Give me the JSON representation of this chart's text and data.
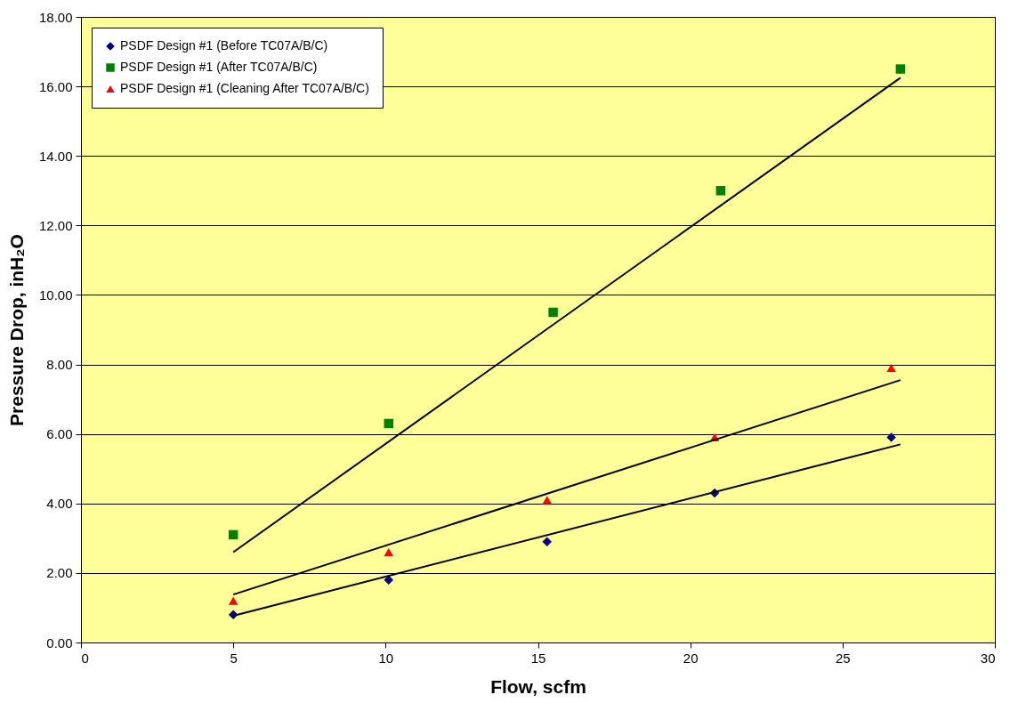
{
  "chart_data": {
    "type": "scatter",
    "xlabel": "Flow, scfm",
    "ylabel": "Pressure Drop, inH₂O",
    "xlim": [
      0,
      30
    ],
    "xticks": [
      0,
      5,
      10,
      15,
      20,
      25,
      30
    ],
    "ylim": [
      0,
      18
    ],
    "yticks": [
      {
        "value": 0,
        "label": "0.00"
      },
      {
        "value": 2,
        "label": "2.00"
      },
      {
        "value": 4,
        "label": "4.00"
      },
      {
        "value": 6,
        "label": "6.00"
      },
      {
        "value": 8,
        "label": "8.00"
      },
      {
        "value": 10,
        "label": "10.00"
      },
      {
        "value": 12,
        "label": "12.00"
      },
      {
        "value": 14,
        "label": "14.00"
      },
      {
        "value": 16,
        "label": "16.00"
      },
      {
        "value": 18,
        "label": "18.00"
      }
    ],
    "grid": "y",
    "legend": "top left",
    "series": [
      {
        "name": "PSDF Design #1 (Before TC07A/B/C)",
        "marker": "diamond",
        "color": "#000080",
        "x": [
          5.0,
          10.1,
          15.3,
          20.8,
          26.6
        ],
        "values": [
          0.8,
          1.8,
          2.9,
          4.3,
          5.9
        ]
      },
      {
        "name": "PSDF Design #1 (After TC07A/B/C)",
        "marker": "square",
        "color": "#008000",
        "x": [
          5.0,
          10.1,
          15.5,
          21.0,
          26.9
        ],
        "values": [
          3.1,
          6.3,
          9.5,
          13.0,
          16.5
        ]
      },
      {
        "name": "PSDF Design #1 (Cleaning After TC07A/B/C)",
        "marker": "triangle",
        "color": "#ff0000",
        "x": [
          5.0,
          10.1,
          15.3,
          20.8,
          26.6
        ],
        "values": [
          1.2,
          2.6,
          4.1,
          5.9,
          7.9
        ]
      },
      {
        "type": "line",
        "color": "#000000",
        "x": [
          5.0,
          26.9
        ],
        "values": [
          0.77,
          5.7
        ]
      },
      {
        "type": "line",
        "color": "#000000",
        "x": [
          5.0,
          26.9
        ],
        "values": [
          2.6,
          16.25
        ]
      },
      {
        "type": "line",
        "color": "#000000",
        "x": [
          5.0,
          26.9
        ],
        "values": [
          1.38,
          7.55
        ]
      }
    ]
  }
}
